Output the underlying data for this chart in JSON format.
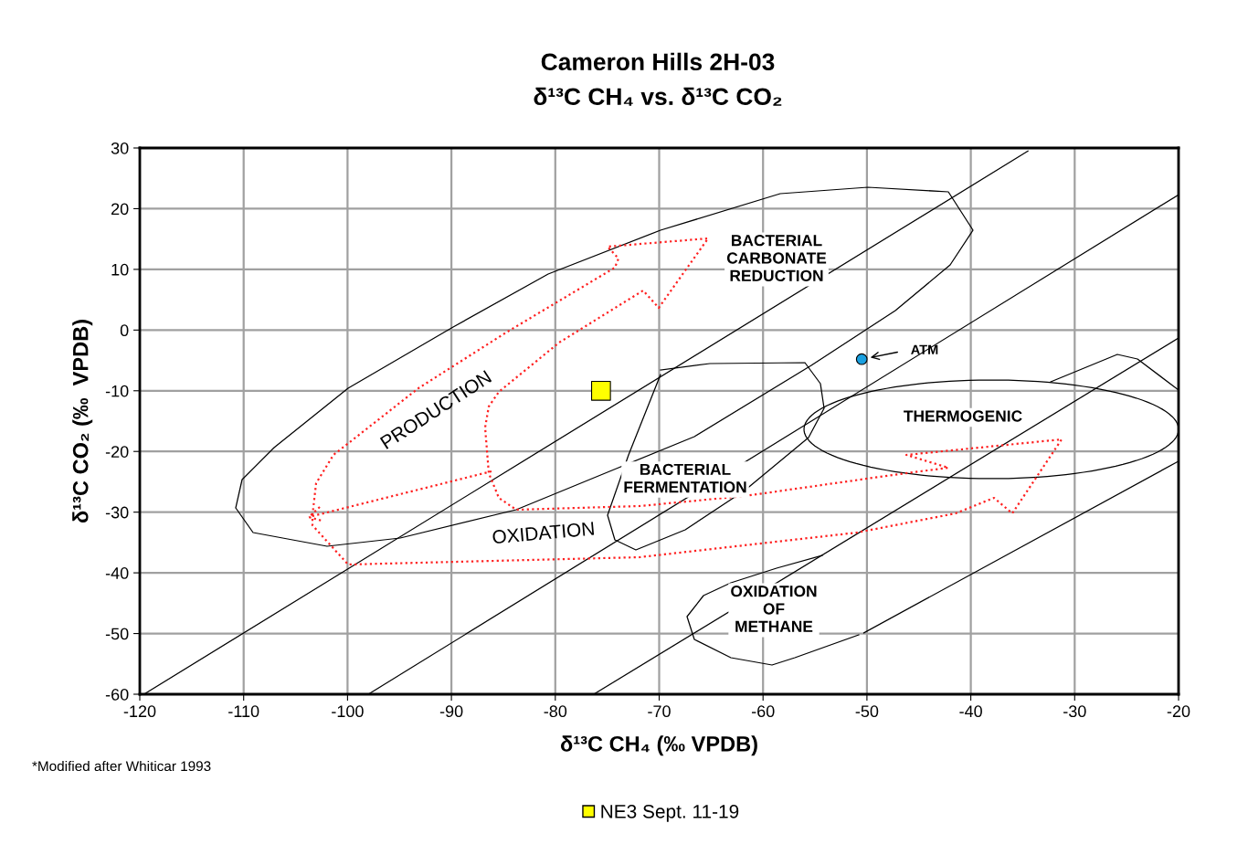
{
  "chart_data": {
    "type": "scatter",
    "title": "Cameron Hills 2H-03",
    "subtitle": "δ¹³C CH₄ vs. δ¹³C CO₂",
    "xlabel": "δ¹³C CH₄ (‰ VPDB)",
    "ylabel": "δ¹³C CO₂ (‰  VPDB)",
    "xlim": [
      -120,
      -20
    ],
    "xticks": [
      -120,
      -110,
      -100,
      -90,
      -80,
      -70,
      -60,
      -50,
      -40,
      -30,
      -20
    ],
    "ylim": [
      -60,
      30
    ],
    "yticks": [
      -60,
      -50,
      -40,
      -30,
      -20,
      -10,
      0,
      10,
      20,
      30
    ],
    "grid": true,
    "legend": "bottom",
    "series": [
      {
        "name": "NE3 Sept. 11-19",
        "type": "scatter",
        "marker": "square",
        "color": "#ffff00",
        "x": [
          -75.6
        ],
        "values": [
          -10
        ]
      },
      {
        "type": "scatter",
        "marker": "circle",
        "color": "#1aa0e0",
        "x": [
          -50.5
        ],
        "values": [
          -4.8
        ]
      },
      {
        "type": "line",
        "marker": "none",
        "color": "#000000",
        "x": [
          -119.6,
          -34.5
        ],
        "values": [
          -60,
          29.5
        ]
      },
      {
        "type": "line",
        "marker": "none",
        "color": "#000000",
        "x": [
          -98,
          -20
        ],
        "values": [
          -60,
          22.3
        ]
      },
      {
        "type": "line",
        "marker": "none",
        "color": "#000000",
        "x": [
          -76.3,
          -20
        ],
        "values": [
          -60,
          -1.3
        ]
      },
      {
        "type": "line",
        "marker": "none",
        "color": "#000000",
        "x": [
          -50.3,
          -20
        ],
        "values": [
          -49.9,
          -21.6
        ]
      }
    ],
    "annotations": [
      "PRODUCTION",
      "BACTERIAL\nCARBONATE\nREDUCTION",
      "THERMOGENIC",
      "BACTERIAL\nFERMENTATION",
      "OXIDATION",
      "OXIDATION\nOF\nMETHANE",
      "ATM",
      "*Modified after Whiticar 1993"
    ]
  }
}
